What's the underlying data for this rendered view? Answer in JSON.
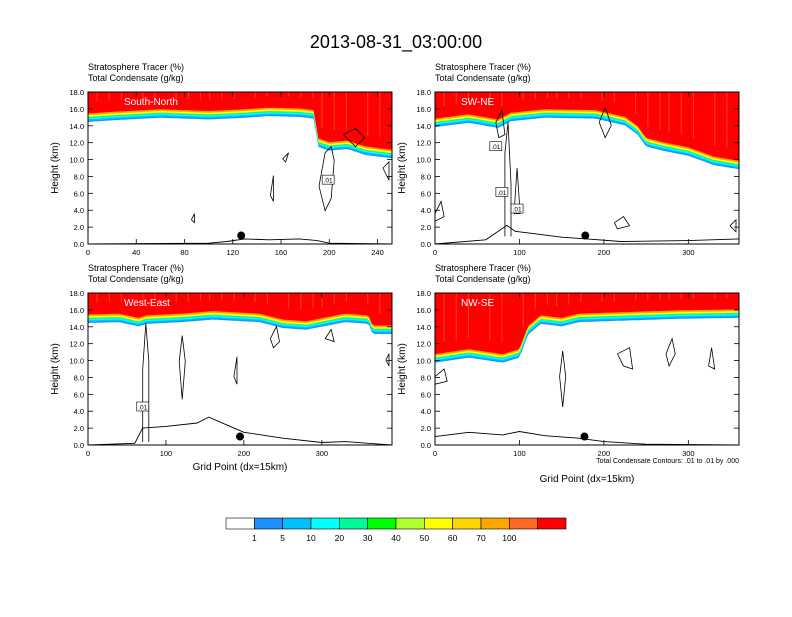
{
  "figure_title": "2013-08-31_03:00:00",
  "panel_header_line1": "Stratosphere Tracer   (%)",
  "panel_header_line2": "Total Condensate   (g/kg)",
  "ylabel": "Height (km)",
  "xlabel": "Grid Point (dx=15km)",
  "contour_note": "Total Condensate Contours: .01 to .01 by .000",
  "contour_label": ".01",
  "colorbar": {
    "colors": [
      "#ffffff",
      "#1e90ff",
      "#00bfff",
      "#00ffff",
      "#00fa9a",
      "#00ff00",
      "#adff2f",
      "#ffff00",
      "#ffd700",
      "#ffa500",
      "#ff6820",
      "#ff0000"
    ],
    "labels": [
      "1",
      "5",
      "10",
      "20",
      "30",
      "40",
      "50",
      "60",
      "70",
      "100"
    ]
  },
  "chart_data": [
    {
      "type": "heatmap",
      "title": "South-North",
      "ylim": [
        0,
        18
      ],
      "xlim": [
        0,
        252
      ],
      "yticks": [
        "0.0",
        "2.0",
        "4.0",
        "6.0",
        "8.0",
        "10.0",
        "12.0",
        "14.0",
        "16.0",
        "18.0"
      ],
      "xticks": [
        0,
        40,
        80,
        120,
        160,
        200,
        240
      ],
      "tracer_base_km": [
        [
          0,
          14.9
        ],
        [
          20,
          15.1
        ],
        [
          60,
          15.4
        ],
        [
          100,
          15.2
        ],
        [
          130,
          15.4
        ],
        [
          150,
          15.6
        ],
        [
          175,
          15.5
        ],
        [
          188,
          15.3
        ],
        [
          190,
          12.0
        ],
        [
          200,
          11.5
        ],
        [
          215,
          11.7
        ],
        [
          230,
          11.0
        ],
        [
          252,
          10.6
        ]
      ],
      "terrain_km": [
        [
          0,
          0.0
        ],
        [
          100,
          0.1
        ],
        [
          115,
          0.3
        ],
        [
          130,
          0.6
        ],
        [
          150,
          0.5
        ],
        [
          175,
          0.6
        ],
        [
          190,
          0.4
        ],
        [
          200,
          0.1
        ],
        [
          252,
          0.0
        ]
      ],
      "marker": [
        127,
        1.0
      ]
    },
    {
      "type": "heatmap",
      "title": "SW-NE",
      "ylim": [
        0,
        18
      ],
      "xlim": [
        0,
        360
      ],
      "yticks": [
        "0.0",
        "2.0",
        "4.0",
        "6.0",
        "8.0",
        "10.0",
        "12.0",
        "14.0",
        "16.0",
        "18.0"
      ],
      "xticks": [
        0,
        100,
        200,
        300
      ],
      "tracer_base_km": [
        [
          0,
          14.3
        ],
        [
          40,
          14.8
        ],
        [
          75,
          14.2
        ],
        [
          90,
          15.0
        ],
        [
          130,
          15.4
        ],
        [
          190,
          15.3
        ],
        [
          225,
          14.5
        ],
        [
          240,
          13.4
        ],
        [
          250,
          12.0
        ],
        [
          270,
          11.5
        ],
        [
          300,
          10.9
        ],
        [
          330,
          9.8
        ],
        [
          360,
          9.3
        ]
      ],
      "terrain_km": [
        [
          0,
          0.0
        ],
        [
          60,
          0.5
        ],
        [
          75,
          1.5
        ],
        [
          85,
          2.2
        ],
        [
          95,
          1.5
        ],
        [
          120,
          1.2
        ],
        [
          150,
          0.8
        ],
        [
          180,
          0.6
        ],
        [
          220,
          0.3
        ],
        [
          300,
          0.4
        ],
        [
          360,
          0.6
        ]
      ],
      "marker": [
        178,
        1.0
      ]
    },
    {
      "type": "heatmap",
      "title": "West-East",
      "ylim": [
        0,
        18
      ],
      "xlim": [
        0,
        390
      ],
      "yticks": [
        "0.0",
        "2.0",
        "4.0",
        "6.0",
        "8.0",
        "10.0",
        "12.0",
        "14.0",
        "16.0",
        "18.0"
      ],
      "xticks": [
        0,
        100,
        200,
        300
      ],
      "tracer_base_km": [
        [
          0,
          14.9
        ],
        [
          40,
          15.0
        ],
        [
          65,
          14.5
        ],
        [
          75,
          14.8
        ],
        [
          120,
          15.0
        ],
        [
          160,
          15.3
        ],
        [
          220,
          15.0
        ],
        [
          250,
          14.3
        ],
        [
          280,
          14.1
        ],
        [
          330,
          15.0
        ],
        [
          360,
          14.8
        ],
        [
          365,
          13.6
        ],
        [
          390,
          13.6
        ]
      ],
      "terrain_km": [
        [
          0,
          0.0
        ],
        [
          60,
          0.2
        ],
        [
          70,
          2.0
        ],
        [
          100,
          2.2
        ],
        [
          140,
          2.6
        ],
        [
          155,
          3.3
        ],
        [
          175,
          2.5
        ],
        [
          200,
          1.5
        ],
        [
          250,
          0.8
        ],
        [
          300,
          0.3
        ],
        [
          330,
          0.4
        ],
        [
          390,
          0.0
        ]
      ],
      "marker": [
        195,
        1.0
      ]
    },
    {
      "type": "heatmap",
      "title": "NW-SE",
      "ylim": [
        0,
        18
      ],
      "xlim": [
        0,
        360
      ],
      "yticks": [
        "0.0",
        "2.0",
        "4.0",
        "6.0",
        "8.0",
        "10.0",
        "12.0",
        "14.0",
        "16.0",
        "18.0"
      ],
      "xticks": [
        0,
        100,
        200,
        300
      ],
      "tracer_base_km": [
        [
          0,
          10.2
        ],
        [
          40,
          10.8
        ],
        [
          80,
          10.2
        ],
        [
          100,
          10.8
        ],
        [
          110,
          13.5
        ],
        [
          125,
          14.8
        ],
        [
          150,
          14.5
        ],
        [
          170,
          15.0
        ],
        [
          230,
          15.2
        ],
        [
          290,
          15.4
        ],
        [
          360,
          15.5
        ]
      ],
      "terrain_km": [
        [
          0,
          1.0
        ],
        [
          40,
          1.5
        ],
        [
          80,
          1.2
        ],
        [
          100,
          1.6
        ],
        [
          130,
          1.1
        ],
        [
          170,
          0.8
        ],
        [
          200,
          0.4
        ],
        [
          250,
          0.1
        ],
        [
          360,
          0.0
        ]
      ],
      "marker": [
        177,
        1.0
      ]
    }
  ]
}
